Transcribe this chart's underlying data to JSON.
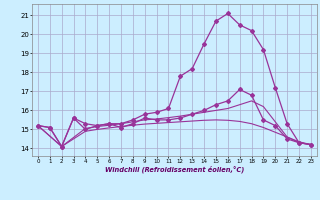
{
  "bg_color": "#cceeff",
  "grid_color": "#aaaacc",
  "line_color": "#993399",
  "x_ticks": [
    0,
    1,
    2,
    3,
    4,
    5,
    6,
    7,
    8,
    9,
    10,
    11,
    12,
    13,
    14,
    15,
    16,
    17,
    18,
    19,
    20,
    21,
    22,
    23
  ],
  "y_ticks": [
    14,
    15,
    16,
    17,
    18,
    19,
    20,
    21
  ],
  "xlim": [
    -0.5,
    23.5
  ],
  "ylim": [
    13.6,
    21.6
  ],
  "xlabel": "Windchill (Refroidissement éolien,°C)",
  "series1_x": [
    0,
    1,
    2,
    3,
    4,
    5,
    6,
    7,
    8,
    9,
    10,
    11,
    12,
    13,
    14,
    15,
    16,
    17,
    18,
    19,
    20,
    21,
    22,
    23
  ],
  "series1_y": [
    15.2,
    15.1,
    14.1,
    15.6,
    15.3,
    15.2,
    15.3,
    15.3,
    15.5,
    15.8,
    15.9,
    16.1,
    17.8,
    18.2,
    19.5,
    20.7,
    21.1,
    20.5,
    20.2,
    19.2,
    17.2,
    15.3,
    14.3,
    14.2
  ],
  "series2_x": [
    0,
    1,
    2,
    3,
    4,
    5,
    6,
    7,
    8,
    9,
    10,
    11,
    12,
    13,
    14,
    15,
    16,
    17,
    18,
    19,
    20,
    21,
    22,
    23
  ],
  "series2_y": [
    15.2,
    15.1,
    14.1,
    15.6,
    15.0,
    15.2,
    15.3,
    15.1,
    15.3,
    15.6,
    15.5,
    15.5,
    15.6,
    15.8,
    16.0,
    16.3,
    16.5,
    17.1,
    16.8,
    15.5,
    15.2,
    14.5,
    14.3,
    14.2
  ],
  "series3_x": [
    0,
    2,
    4,
    5,
    6,
    7,
    8,
    9,
    10,
    11,
    12,
    13,
    14,
    15,
    16,
    17,
    18,
    19,
    20,
    21,
    22,
    23
  ],
  "series3_y": [
    15.2,
    14.1,
    15.05,
    15.15,
    15.22,
    15.3,
    15.4,
    15.5,
    15.55,
    15.62,
    15.7,
    15.8,
    15.9,
    16.0,
    16.1,
    16.3,
    16.5,
    16.2,
    15.4,
    14.6,
    14.3,
    14.2
  ],
  "series4_x": [
    0,
    2,
    4,
    5,
    6,
    7,
    8,
    9,
    10,
    11,
    12,
    13,
    14,
    15,
    16,
    17,
    18,
    19,
    20,
    21,
    22,
    23
  ],
  "series4_y": [
    15.2,
    14.1,
    14.9,
    15.0,
    15.08,
    15.15,
    15.22,
    15.28,
    15.32,
    15.36,
    15.4,
    15.44,
    15.48,
    15.5,
    15.48,
    15.42,
    15.3,
    15.1,
    14.85,
    14.6,
    14.35,
    14.2
  ]
}
